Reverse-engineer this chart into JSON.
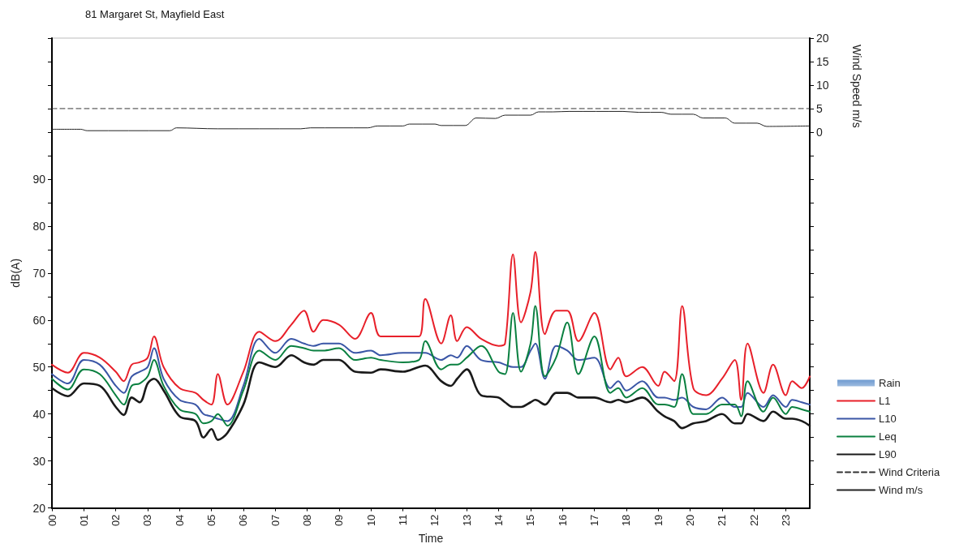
{
  "chart_data": {
    "type": "line",
    "title": "81 Margaret St, Mayfield East",
    "xlabel": "Time",
    "ylabel": "dB(A)",
    "y2label": "Wind Speed m/s",
    "legend": "right",
    "grid": false,
    "marker": "none",
    "xlim": [
      0,
      23.75
    ],
    "xticks": [
      {
        "value": 0,
        "label": "00"
      },
      {
        "value": 1,
        "label": "01"
      },
      {
        "value": 2,
        "label": "02"
      },
      {
        "value": 3,
        "label": "03"
      },
      {
        "value": 4,
        "label": "04"
      },
      {
        "value": 5,
        "label": "05"
      },
      {
        "value": 6,
        "label": "06"
      },
      {
        "value": 7,
        "label": "07"
      },
      {
        "value": 8,
        "label": "08"
      },
      {
        "value": 9,
        "label": "09"
      },
      {
        "value": 10,
        "label": "10"
      },
      {
        "value": 11,
        "label": "11"
      },
      {
        "value": 12,
        "label": "12"
      },
      {
        "value": 13,
        "label": "13"
      },
      {
        "value": 14,
        "label": "14"
      },
      {
        "value": 15,
        "label": "15"
      },
      {
        "value": 16,
        "label": "16"
      },
      {
        "value": 17,
        "label": "17"
      },
      {
        "value": 18,
        "label": "18"
      },
      {
        "value": 19,
        "label": "19"
      },
      {
        "value": 20,
        "label": "20"
      },
      {
        "value": 21,
        "label": "21"
      },
      {
        "value": 22,
        "label": "22"
      },
      {
        "value": 23,
        "label": "23"
      }
    ],
    "ylim": [
      20,
      120
    ],
    "yticks": [
      20,
      {
        "value": 25,
        "label": null
      },
      30,
      {
        "value": 35,
        "label": null
      },
      40,
      {
        "value": 45,
        "label": null
      },
      50,
      {
        "value": 55,
        "label": null
      },
      60,
      {
        "value": 65,
        "label": null
      },
      70,
      {
        "value": 75,
        "label": null
      },
      80,
      {
        "value": 85,
        "label": null
      },
      90,
      {
        "value": 95,
        "label": null
      },
      {
        "value": 100,
        "label": null
      },
      {
        "value": 105,
        "label": null
      },
      {
        "value": 110,
        "label": null
      },
      {
        "value": 115,
        "label": null
      },
      {
        "value": 120,
        "label": null
      }
    ],
    "y2lim": [
      -80,
      20
    ],
    "y2ticks": [
      {
        "value": -75,
        "label": null
      },
      {
        "value": -70,
        "label": null
      },
      {
        "value": -65,
        "label": null
      },
      {
        "value": -60,
        "label": null
      },
      {
        "value": -55,
        "label": null
      },
      {
        "value": -50,
        "label": null
      },
      {
        "value": -45,
        "label": null
      },
      {
        "value": -40,
        "label": null
      },
      {
        "value": -35,
        "label": null
      },
      {
        "value": -30,
        "label": null
      },
      {
        "value": -25,
        "label": null
      },
      {
        "value": -20,
        "label": null
      },
      {
        "value": -15,
        "label": null
      },
      {
        "value": -10,
        "label": null
      },
      {
        "value": -5,
        "label": null
      },
      0,
      5,
      10,
      15,
      20
    ],
    "x": [
      0,
      0.5,
      1,
      1.5,
      2,
      2.25,
      2.5,
      2.75,
      3,
      3.2,
      3.5,
      4,
      4.5,
      4.75,
      5,
      5.2,
      5.5,
      6,
      6.5,
      7,
      7.5,
      7.9,
      8.2,
      8.5,
      9,
      9.5,
      10,
      10.3,
      11,
      11.5,
      11.7,
      12.2,
      12.5,
      12.7,
      13,
      13.45,
      14,
      14.2,
      14.45,
      14.7,
      15,
      15.15,
      15.45,
      15.8,
      16.15,
      16.5,
      17,
      17.5,
      17.75,
      18,
      18.5,
      19,
      19.2,
      19.5,
      19.75,
      20.1,
      20.5,
      21,
      21.4,
      21.6,
      21.8,
      22.3,
      22.6,
      23,
      23.2,
      23.5,
      23.75
    ],
    "series": [
      {
        "name": "Rain",
        "type": "bar",
        "color": "#9dbbe0",
        "values": [
          null,
          null,
          null,
          null,
          null,
          null,
          null,
          null,
          null,
          null,
          null,
          null,
          null,
          null,
          null,
          null,
          null,
          null,
          null,
          null,
          null,
          null,
          null,
          null,
          null,
          null,
          null,
          null,
          null,
          null,
          null,
          null,
          null,
          null,
          null,
          null,
          null,
          null,
          null,
          null,
          null,
          null,
          null,
          null,
          null,
          null,
          null,
          null,
          null,
          null,
          null,
          null,
          null,
          null,
          null,
          null,
          null,
          null,
          null,
          null,
          null,
          null,
          null,
          null,
          null,
          null,
          null
        ]
      },
      {
        "name": "L1",
        "color": "#e8202a",
        "values": [
          50.5,
          48.8,
          53,
          52,
          49,
          47,
          50.5,
          51,
          52,
          56.5,
          50,
          45.5,
          44.5,
          43,
          42,
          48.5,
          42,
          49,
          57.5,
          55.5,
          59,
          62,
          57.5,
          60,
          59,
          56,
          61.5,
          56.5,
          56.5,
          56.5,
          64.5,
          55,
          61,
          55.5,
          58.5,
          56,
          54.5,
          55,
          74,
          59.5,
          66,
          74.5,
          57,
          62,
          62,
          55.5,
          61.5,
          49.5,
          52,
          48,
          50,
          46,
          49,
          47,
          63,
          45.5,
          44,
          47.5,
          51.5,
          43,
          55,
          44.5,
          50.5,
          44,
          47,
          45.5,
          48
        ]
      },
      {
        "name": "L10",
        "color": "#3a56a6",
        "values": [
          48.5,
          46.5,
          51.5,
          50.5,
          46,
          44.5,
          48,
          49,
          50,
          54,
          47.5,
          43,
          42,
          40,
          39.5,
          39,
          38.5,
          46,
          56,
          53,
          56,
          55,
          54.5,
          55,
          55,
          53,
          53.5,
          52.5,
          53,
          53,
          53,
          51.5,
          52.5,
          52,
          54.5,
          51.5,
          51,
          50.5,
          50,
          50,
          53.5,
          55,
          47.5,
          54.5,
          53.5,
          51.5,
          52,
          45.5,
          47,
          45,
          47,
          43.5,
          43.5,
          43,
          43.5,
          41.5,
          41,
          43.5,
          41.5,
          41.5,
          44.5,
          41.5,
          44,
          41.5,
          43,
          42.5,
          42
        ]
      },
      {
        "name": "Leq",
        "color": "#0a8040",
        "values": [
          47.5,
          45.2,
          49.5,
          48.5,
          44,
          42,
          46,
          46.5,
          48,
          51.5,
          46,
          41,
          40,
          38,
          38.5,
          40,
          37.5,
          45,
          53.5,
          51.5,
          54.5,
          54,
          53.5,
          53.5,
          54,
          51.5,
          52,
          51.5,
          51,
          51.5,
          55.5,
          49.5,
          50.5,
          50.5,
          52,
          54.5,
          49,
          48.5,
          61.5,
          49,
          55,
          63,
          48,
          52,
          59.5,
          48.5,
          56.5,
          44.5,
          45.5,
          43.5,
          45.5,
          42,
          42,
          41.5,
          48.5,
          40,
          40,
          42,
          42,
          39.5,
          47,
          40.5,
          43.5,
          40,
          41.5,
          41,
          40.5
        ]
      },
      {
        "name": "L90",
        "color": "#1a1a1a",
        "values": [
          45.5,
          43.8,
          46.5,
          46,
          41.5,
          39.8,
          43.5,
          42.5,
          46.5,
          47.5,
          45,
          39.5,
          38.5,
          35,
          36.8,
          34.5,
          36,
          42,
          51,
          50,
          52.5,
          51,
          50.5,
          51.5,
          51.5,
          49,
          48.8,
          49.5,
          49,
          50,
          50.3,
          47,
          46,
          47.5,
          49.5,
          44,
          43.5,
          42.5,
          41.5,
          41.5,
          42.5,
          43,
          42,
          44.5,
          44.5,
          43.5,
          43.5,
          42.5,
          43,
          42.5,
          43.5,
          40.5,
          39.5,
          38.5,
          37,
          38,
          38.5,
          40,
          38,
          38,
          40,
          38.5,
          40.5,
          39,
          39,
          38.5,
          37.5
        ]
      },
      {
        "name": "Wind Criteria",
        "axis": "y2",
        "color": "#333333",
        "line_style": "dashed",
        "x": [
          0,
          23.75
        ],
        "values": [
          5,
          5
        ]
      },
      {
        "name": "Wind m/s",
        "axis": "y2",
        "color": "#222222",
        "x": [
          0,
          0.9,
          1.1,
          3.7,
          3.9,
          5.2,
          7.8,
          8.1,
          9.9,
          10.2,
          11,
          11.2,
          12,
          12.2,
          12.95,
          13.3,
          13.9,
          14.2,
          15,
          15.25,
          15.7,
          16.2,
          17.9,
          18.4,
          19.1,
          19.4,
          20.1,
          20.4,
          21.1,
          21.4,
          22.1,
          22.4,
          23.75
        ],
        "values": [
          0.6,
          0.6,
          0.3,
          0.3,
          0.9,
          0.7,
          0.7,
          0.9,
          0.9,
          1.3,
          1.3,
          1.7,
          1.7,
          1.4,
          1.4,
          3,
          2.9,
          3.6,
          3.6,
          4.3,
          4.3,
          4.4,
          4.4,
          4.2,
          4.2,
          3.8,
          3.8,
          3,
          3,
          1.9,
          1.9,
          1.2,
          1.3
        ]
      }
    ]
  }
}
